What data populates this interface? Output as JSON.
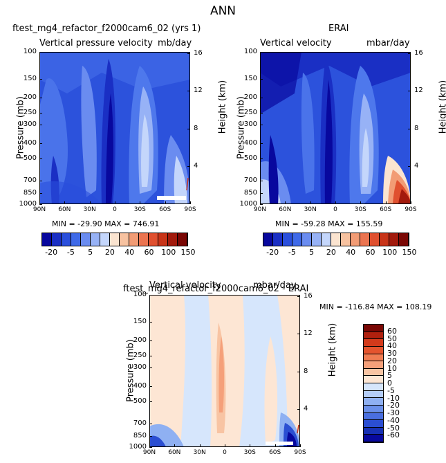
{
  "suptitle": "ANN",
  "panels": [
    {
      "id": "model",
      "title": "ftest_mg4_refactor_f2000cam6_02 (yrs 1)",
      "left_label": "Vertical pressure velocity",
      "right_label": "mb/day",
      "minmax": "MIN = -29.90   MAX = 746.91"
    },
    {
      "id": "obs",
      "title": "ERAI",
      "left_label": "Vertical velocity",
      "right_label": "mbar/day",
      "minmax": "MIN = -59.28   MAX = 155.59"
    },
    {
      "id": "diff",
      "title": "ftest_mg4_refactor_f2000cam6_02 - ERAI",
      "left_label": "Vertical velocity",
      "right_label": "mbar/day",
      "minmax": "MIN = -116.84   MAX = 108.19"
    }
  ],
  "axes": {
    "ylabel": "Pressure (mb)",
    "ylabel2": "Height (km)",
    "pressure_ticks": [
      "100",
      "150",
      "200",
      "250",
      "300",
      "400",
      "500",
      "700",
      "850",
      "1000"
    ],
    "height_ticks": [
      "16",
      "12",
      "8",
      "4"
    ],
    "lat_ticks": [
      "90N",
      "60N",
      "30N",
      "0",
      "30S",
      "60S",
      "90S"
    ]
  },
  "colorbar_top": {
    "labels": [
      "-20",
      "-5",
      "5",
      "20",
      "40",
      "60",
      "100",
      "150"
    ],
    "colors": [
      "#08089e",
      "#1a2fc4",
      "#2a4fdc",
      "#3f6ae8",
      "#6a8cf0",
      "#97b2f6",
      "#c4d6fb",
      "#fbe4d0",
      "#f7c2a0",
      "#f29c75",
      "#eb7450",
      "#e0502f",
      "#c83418",
      "#a21a0c",
      "#7a0704"
    ]
  },
  "colorbar_diff": {
    "labels": [
      "60",
      "50",
      "40",
      "30",
      "20",
      "10",
      "5",
      "0",
      "-5",
      "-10",
      "-20",
      "-30",
      "-40",
      "-50",
      "-60"
    ],
    "colors": [
      "#7a0704",
      "#b0200e",
      "#d33a1b",
      "#e5542e",
      "#f07c52",
      "#f5a07a",
      "#f8c4a3",
      "#fde6d4",
      "#d6e6fc",
      "#b4cdf8",
      "#8fb0f2",
      "#6b90ea",
      "#4a6fe0",
      "#2b4ed2",
      "#1730b4",
      "#08089e"
    ]
  },
  "chart_data": [
    {
      "type": "heatmap",
      "title": "ftest_mg4_refactor_f2000cam6_02 (yrs 1)",
      "xlabel": "",
      "ylabel": "Pressure (mb)",
      "x_ticks": [
        "90N",
        "60N",
        "30N",
        "0",
        "30S",
        "60S",
        "90S"
      ],
      "y_range": [
        1000,
        100
      ],
      "y_scale": "log",
      "variable": "Vertical pressure velocity (mb/day)",
      "min": -29.9,
      "max": 746.91
    },
    {
      "type": "heatmap",
      "title": "ERAI",
      "xlabel": "",
      "ylabel": "Pressure (mb)",
      "x_ticks": [
        "90N",
        "60N",
        "30N",
        "0",
        "30S",
        "60S",
        "90S"
      ],
      "y_range": [
        1000,
        100
      ],
      "y_scale": "log",
      "variable": "Vertical velocity (mbar/day)",
      "min": -59.28,
      "max": 155.59
    },
    {
      "type": "heatmap",
      "title": "ftest_mg4_refactor_f2000cam6_02 - ERAI",
      "xlabel": "",
      "ylabel": "Pressure (mb)",
      "x_ticks": [
        "90N",
        "60N",
        "30N",
        "0",
        "30S",
        "60S",
        "90S"
      ],
      "y_range": [
        1000,
        100
      ],
      "y_scale": "log",
      "variable": "Vertical velocity (mbar/day)",
      "min": -116.84,
      "max": 108.19
    }
  ]
}
